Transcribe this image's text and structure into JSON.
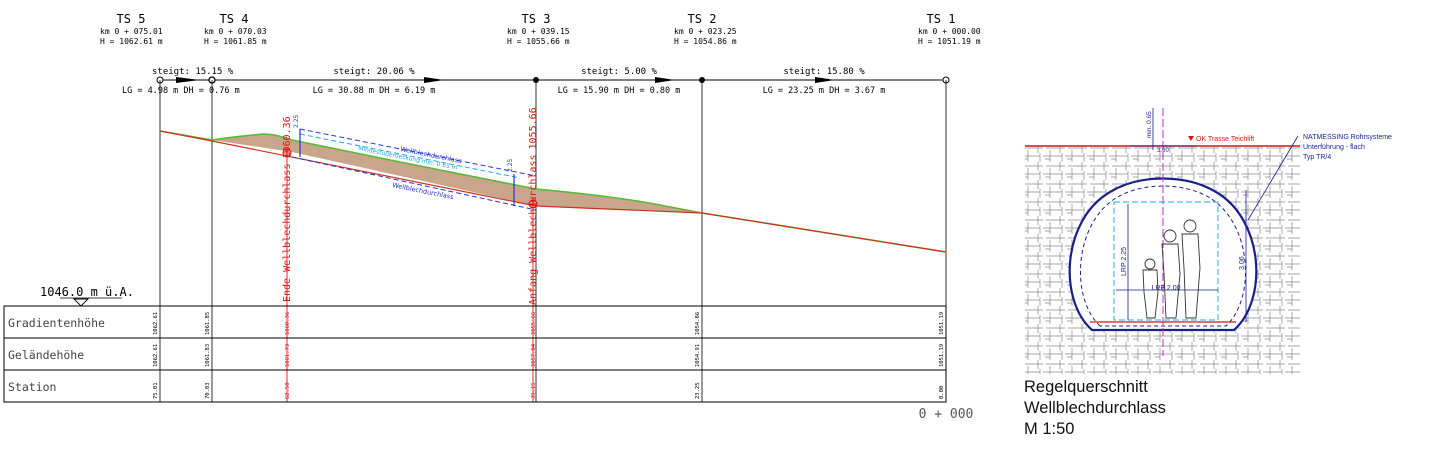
{
  "stations": [
    {
      "name": "TS 5",
      "km": "km 0 + 075.01",
      "h": "H  = 1062.61 m"
    },
    {
      "name": "TS 4",
      "km": "km 0 + 070.03",
      "h": "H  = 1061.85 m"
    },
    {
      "name": "TS 3",
      "km": "km 0 + 039.15",
      "h": "H  = 1055.66 m"
    },
    {
      "name": "TS 2",
      "km": "km 0 + 023.25",
      "h": "H  = 1054.86 m"
    },
    {
      "name": "TS 1",
      "km": "km 0 + 000.00",
      "h": "H  = 1051.19 m"
    }
  ],
  "segments": [
    {
      "steigt": "steigt: 15.15 %",
      "lg_dh": "LG = 4.98 m  DH = 0.76 m"
    },
    {
      "steigt": "steigt: 20.06 %",
      "lg_dh": "LG = 30.88 m  DH = 6.19 m"
    },
    {
      "steigt": "steigt: 5.00 %",
      "lg_dh": "LG = 15.90 m  DH = 0.80 m"
    },
    {
      "steigt": "steigt: 15.80 %",
      "lg_dh": "LG = 23.25 m  DH = 3.67 m"
    }
  ],
  "datum": "1046.0 m ü.A.",
  "culvert": {
    "end_label": "Ende Wellblechdurchlass",
    "end_value": "1060.36",
    "start_label": "Anfang Wellblechdurchlass",
    "start_value": "1055.66",
    "top_label": "Wellblechdurchlass",
    "middle_label": "Mindestüberdeckung min. 0.65 m",
    "bottom_label": "Wellblechdurchlass",
    "dim_left": "2.25",
    "dim_right": "2.25"
  },
  "table": {
    "rows": [
      {
        "label": "Gradientenhöhe",
        "values": [
          "1062.61",
          "1061.85",
          "1060.36",
          "1055.66",
          "1054.86",
          "1051.19"
        ]
      },
      {
        "label": "Geländehöhe",
        "values": [
          "1062.61",
          "1061.83",
          "1061.73",
          "1057.04",
          "1054.91",
          "1051.19"
        ]
      },
      {
        "label": "Station",
        "values": [
          "75.01",
          "70.03",
          "62.58",
          "39.15",
          "23.25",
          "0.00"
        ]
      }
    ],
    "end_station": "0 + 000"
  },
  "cross_section": {
    "ok_label": "OK Trasse Teichlift",
    "cover_label": "min. 0.65",
    "maker_lines": [
      "NATMESSING Rohrsysteme",
      "Unterführung - flach",
      "Typ TR/4"
    ],
    "width_top": "3.60",
    "lrp_height": "LRP 2.25",
    "lrp_width": "LRP 2.00",
    "height_total": "3.06"
  },
  "caption": {
    "line1": "Regelquerschnitt",
    "line2": "Wellblechdurchlass",
    "line3": "M 1:50"
  },
  "colors": {
    "grade": "#d03020",
    "terrain": "#55bb33",
    "fill": "#c9a58c",
    "culvert": "#2233cc",
    "cover": "#22aadd",
    "red_text": "#dd1111"
  }
}
